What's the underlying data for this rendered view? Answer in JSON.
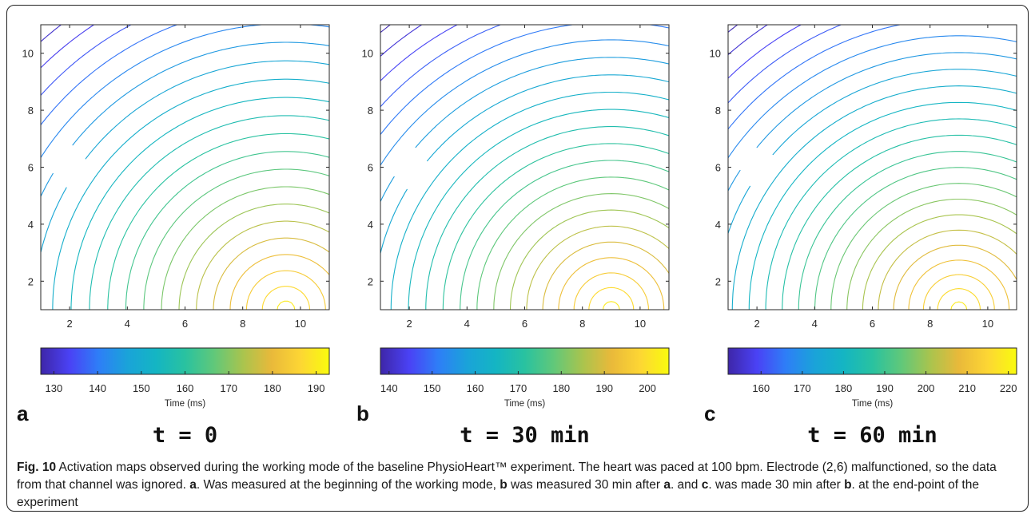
{
  "chart_data": [
    {
      "type": "contour",
      "panel_label": "a",
      "time_label": "t = 0",
      "xlabel": "",
      "ylabel": "",
      "x_ticks": [
        2,
        4,
        6,
        8,
        10
      ],
      "y_ticks": [
        2,
        4,
        6,
        8,
        10
      ],
      "xlim": [
        1,
        11
      ],
      "ylim": [
        1,
        11
      ],
      "colorbar": {
        "label": "Time (ms)",
        "min": 127,
        "max": 193,
        "ticks": [
          130,
          140,
          150,
          160,
          170,
          180,
          190
        ]
      },
      "field": {
        "t0": 128,
        "t1": 192,
        "cx": 9.5,
        "cy": 1.0
      },
      "contour_levels": [
        130,
        133,
        136,
        139,
        142,
        145,
        148,
        151,
        154,
        157,
        160,
        163,
        166,
        169,
        172,
        175,
        178,
        181,
        184,
        187,
        190
      ],
      "missing_electrode": [
        2,
        6
      ]
    },
    {
      "type": "contour",
      "panel_label": "b",
      "time_label": "t = 30 min",
      "xlabel": "",
      "ylabel": "",
      "x_ticks": [
        2,
        4,
        6,
        8,
        10
      ],
      "y_ticks": [
        2,
        4,
        6,
        8,
        10
      ],
      "xlim": [
        1,
        11
      ],
      "ylim": [
        1,
        11
      ],
      "colorbar": {
        "label": "Time (ms)",
        "min": 138,
        "max": 205,
        "ticks": [
          140,
          150,
          160,
          170,
          180,
          190,
          200
        ]
      },
      "field": {
        "t0": 138,
        "t1": 204,
        "cx": 9.0,
        "cy": 1.0
      },
      "contour_levels": [
        139,
        142,
        145,
        148,
        151,
        154,
        157,
        160,
        163,
        166,
        169,
        172,
        175,
        178,
        181,
        184,
        187,
        190,
        193,
        196,
        199,
        202
      ],
      "missing_electrode": [
        2,
        6
      ]
    },
    {
      "type": "contour",
      "panel_label": "c",
      "time_label": "t = 60 min",
      "xlabel": "",
      "ylabel": "",
      "x_ticks": [
        2,
        4,
        6,
        8,
        10
      ],
      "y_ticks": [
        2,
        4,
        6,
        8,
        10
      ],
      "xlim": [
        1,
        11
      ],
      "ylim": [
        1,
        11
      ],
      "colorbar": {
        "label": "Time (ms)",
        "min": 152,
        "max": 222,
        "ticks": [
          160,
          170,
          180,
          190,
          200,
          210,
          220
        ]
      },
      "field": {
        "t0": 152,
        "t1": 221,
        "cx": 9.0,
        "cy": 1.0
      },
      "contour_levels": [
        153,
        156,
        159,
        162,
        165,
        168,
        171,
        174,
        177,
        180,
        183,
        186,
        189,
        192,
        195,
        198,
        201,
        204,
        207,
        210,
        213,
        216,
        219
      ],
      "missing_electrode": [
        2,
        6
      ]
    }
  ],
  "colormap": [
    "#3e26a8",
    "#4a42f5",
    "#2e7ef7",
    "#1aa3d9",
    "#14b5c3",
    "#29c2a0",
    "#60c87a",
    "#a9c44e",
    "#e9b93a",
    "#fdd634",
    "#f9fb0e"
  ],
  "caption": {
    "fig_label": "Fig. 10",
    "segments": [
      {
        "t": " Activation maps observed during the working mode of the baseline PhysioHeart™ experiment. The heart was paced at 100 bpm. Electrode (2,6) malfunctioned, so the data from that channel was ignored. ",
        "b": false
      },
      {
        "t": "a",
        "b": true
      },
      {
        "t": ". Was measured at the beginning of the working mode, ",
        "b": false
      },
      {
        "t": "b",
        "b": true
      },
      {
        "t": " was measured 30 min after ",
        "b": false
      },
      {
        "t": "a",
        "b": true
      },
      {
        "t": ". and ",
        "b": false
      },
      {
        "t": "c",
        "b": true
      },
      {
        "t": ". was made 30 min after ",
        "b": false
      },
      {
        "t": "b",
        "b": true
      },
      {
        "t": ". at the end-point of the experiment",
        "b": false
      }
    ]
  }
}
